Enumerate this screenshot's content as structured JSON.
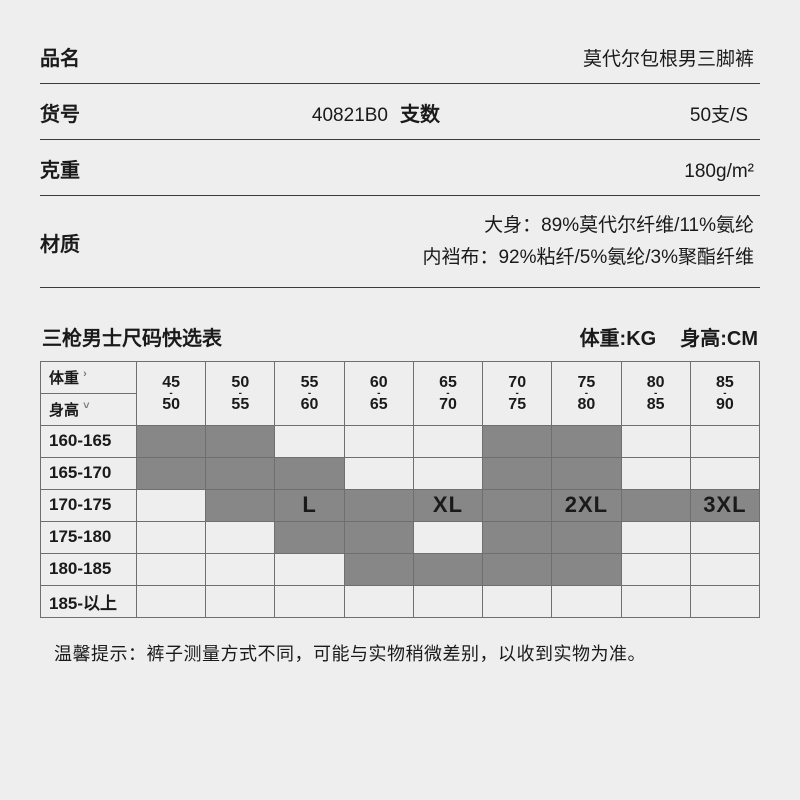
{
  "spec": {
    "name_label": "品名",
    "name_value": "莫代尔包根男三脚裤",
    "sku_label": "货号",
    "sku_value": "40821B0",
    "count_label": "支数",
    "count_value": "50支/S",
    "weight_label": "克重",
    "weight_value": "180g/m²",
    "material_label": "材质",
    "material_line1": "大身：89%莫代尔纤维/11%氨纶",
    "material_line2": "内裆布：92%粘纤/5%氨纶/3%聚酯纤维"
  },
  "chart": {
    "title": "三枪男士尺码快选表",
    "unit_weight": "体重:KG",
    "unit_height": "身高:CM",
    "corner_weight": "体重",
    "corner_height": "身高",
    "weight_ranges": [
      {
        "a": "45",
        "b": "50"
      },
      {
        "a": "50",
        "b": "55"
      },
      {
        "a": "55",
        "b": "60"
      },
      {
        "a": "60",
        "b": "65"
      },
      {
        "a": "65",
        "b": "70"
      },
      {
        "a": "70",
        "b": "75"
      },
      {
        "a": "75",
        "b": "80"
      },
      {
        "a": "80",
        "b": "85"
      },
      {
        "a": "85",
        "b": "90"
      }
    ],
    "height_rows": [
      "160-165",
      "165-170",
      "170-175",
      "175-180",
      "180-185",
      "185-以上"
    ],
    "size_labels": [
      "L",
      "XL",
      "2XL",
      "3XL"
    ],
    "shade_map": [
      [
        1,
        1,
        0,
        0,
        0,
        1,
        1,
        0,
        0
      ],
      [
        1,
        1,
        1,
        0,
        0,
        1,
        1,
        0,
        0
      ],
      [
        0,
        1,
        2,
        1,
        2,
        1,
        2,
        1,
        2
      ],
      [
        0,
        0,
        1,
        1,
        0,
        1,
        1,
        0,
        0
      ],
      [
        0,
        0,
        0,
        1,
        1,
        1,
        1,
        0,
        0
      ],
      [
        0,
        0,
        0,
        0,
        0,
        0,
        0,
        0,
        0
      ]
    ],
    "colors": {
      "dark": "#878787",
      "line": "#6f6f6f",
      "page_bg": "#eeeeee"
    }
  },
  "footnote": "温馨提示：裤子测量方式不同，可能与实物稍微差别，以收到实物为准。"
}
